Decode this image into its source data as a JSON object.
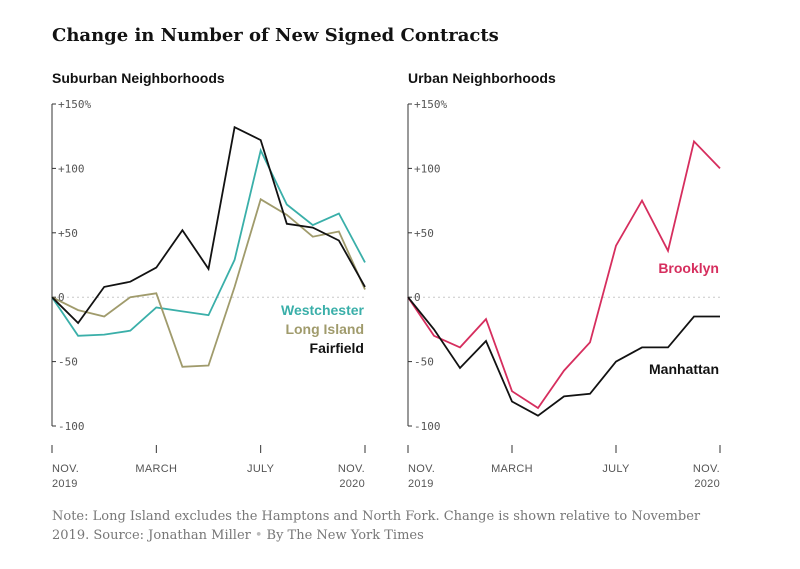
{
  "title": "Change in Number of New Signed Contracts",
  "source": {
    "note": "Note: Long Island excludes the Hamptons and North Fork. Change is shown relative to November 2019. Source: Jonathan Miller",
    "credit": "By The New York Times"
  },
  "chart_data": [
    {
      "type": "line",
      "title": "Suburban Neighborhoods",
      "ylim": [
        -100,
        150
      ],
      "y_ticks": [
        {
          "value": 150,
          "label": "+150%"
        },
        {
          "value": 100,
          "label": "+100"
        },
        {
          "value": 50,
          "label": "+50"
        },
        {
          "value": 0,
          "label": "0"
        },
        {
          "value": -50,
          "label": "-50"
        },
        {
          "value": -100,
          "label": "-100"
        }
      ],
      "x_ticks": [
        {
          "index": 0,
          "label": "NOV.",
          "sublabel": "2019",
          "anchor": "start"
        },
        {
          "index": 4,
          "label": "MARCH",
          "sublabel": "",
          "anchor": "middle"
        },
        {
          "index": 8,
          "label": "JULY",
          "sublabel": "",
          "anchor": "middle"
        },
        {
          "index": 12,
          "label": "NOV.",
          "sublabel": "2020",
          "anchor": "end"
        }
      ],
      "zero_line": true,
      "series": [
        {
          "name": "Westchester",
          "color": "#3aafa9",
          "values": [
            0,
            -30,
            -29,
            -26,
            -8,
            -11,
            -14,
            29,
            114,
            72,
            56,
            65,
            27
          ]
        },
        {
          "name": "Long Island",
          "color": "#a09b6c",
          "values": [
            0,
            -10,
            -15,
            0,
            3,
            -54,
            -53,
            8,
            76,
            64,
            47,
            51,
            6
          ]
        },
        {
          "name": "Fairfield",
          "color": "#121212",
          "values": [
            0,
            -20,
            8,
            12,
            23,
            52,
            22,
            132,
            122,
            57,
            54,
            44,
            8
          ]
        }
      ]
    },
    {
      "type": "line",
      "title": "Urban Neighborhoods",
      "ylim": [
        -100,
        150
      ],
      "y_ticks": [
        {
          "value": 150,
          "label": "+150%"
        },
        {
          "value": 100,
          "label": "+100"
        },
        {
          "value": 50,
          "label": "+50"
        },
        {
          "value": 0,
          "label": "0"
        },
        {
          "value": -50,
          "label": "-50"
        },
        {
          "value": -100,
          "label": "-100"
        }
      ],
      "x_ticks": [
        {
          "index": 0,
          "label": "NOV.",
          "sublabel": "2019",
          "anchor": "start"
        },
        {
          "index": 4,
          "label": "MARCH",
          "sublabel": "",
          "anchor": "middle"
        },
        {
          "index": 8,
          "label": "JULY",
          "sublabel": "",
          "anchor": "middle"
        },
        {
          "index": 12,
          "label": "NOV.",
          "sublabel": "2020",
          "anchor": "end"
        }
      ],
      "zero_line": true,
      "series": [
        {
          "name": "Brooklyn",
          "color": "#d62e5e",
          "values": [
            0,
            -30,
            -39,
            -17,
            -73,
            -86,
            -57,
            -35,
            40,
            75,
            36,
            121,
            100
          ]
        },
        {
          "name": "Manhattan",
          "color": "#121212",
          "values": [
            0,
            -25,
            -55,
            -34,
            -81,
            -92,
            -77,
            -75,
            -50,
            -39,
            -39,
            -15,
            -15
          ]
        }
      ]
    }
  ]
}
